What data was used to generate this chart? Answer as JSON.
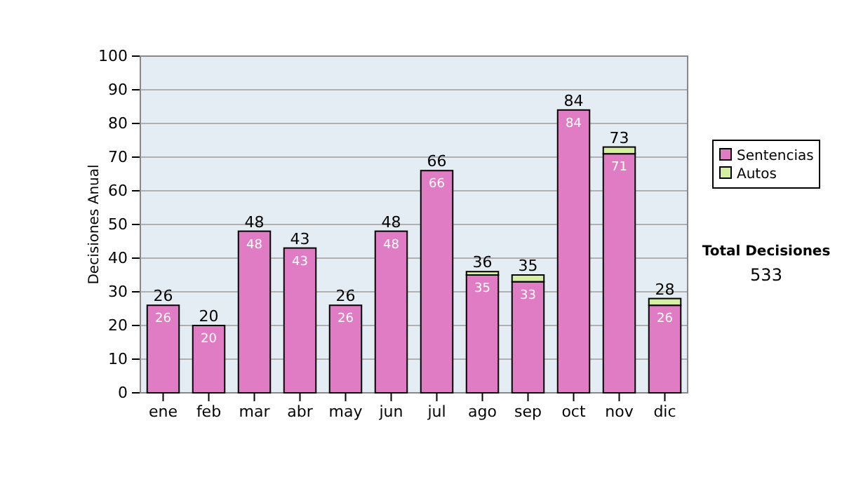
{
  "chart_data": {
    "type": "bar",
    "stacked": true,
    "ylabel": "Decisiones Anual",
    "categories": [
      "ene",
      "feb",
      "mar",
      "abr",
      "may",
      "jun",
      "jul",
      "ago",
      "sep",
      "oct",
      "nov",
      "dic"
    ],
    "series": [
      {
        "name": "Sentencias",
        "color": "#e07cc4",
        "values": [
          26,
          20,
          48,
          43,
          26,
          48,
          66,
          35,
          33,
          84,
          71,
          26
        ],
        "value_labels": [
          "26",
          "20",
          "48",
          "43",
          "26",
          "48",
          "66",
          "35",
          "33",
          "84",
          "71",
          "26"
        ]
      },
      {
        "name": "Autos",
        "color": "#d4f0a0",
        "values": [
          0,
          0,
          0,
          0,
          0,
          0,
          0,
          1,
          2,
          0,
          2,
          2
        ]
      }
    ],
    "totals": [
      "26",
      "20",
      "48",
      "43",
      "26",
      "48",
      "66",
      "36",
      "35",
      "84",
      "73",
      "28"
    ],
    "ylim": [
      0,
      100
    ],
    "yticks": [
      0,
      10,
      20,
      30,
      40,
      50,
      60,
      70,
      80,
      90,
      100
    ],
    "grid": "y",
    "legend": "right",
    "annotations": [
      "Total Decisiones",
      "533"
    ]
  }
}
